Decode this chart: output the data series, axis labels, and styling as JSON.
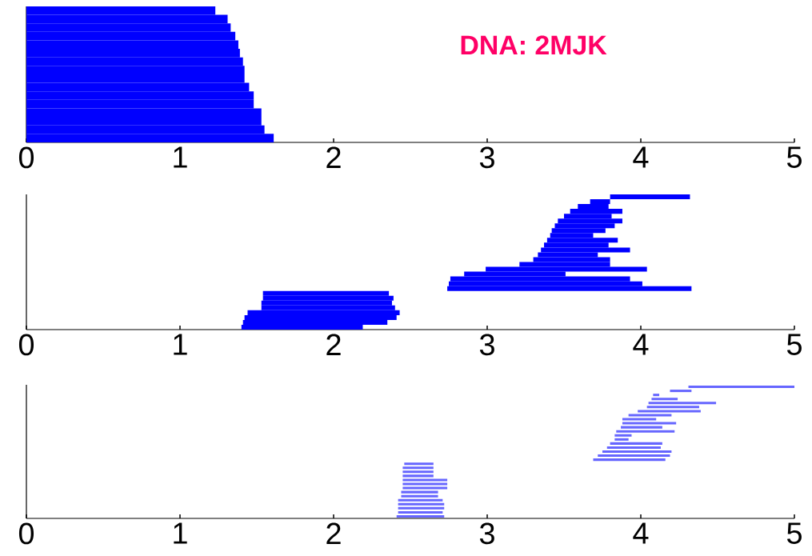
{
  "chart_data": [
    {
      "type": "bar",
      "orientation": "horizontal",
      "title": "DNA: 2MJK",
      "color": "#0000ff",
      "xlim": [
        0,
        5
      ],
      "xticks": [
        0,
        1,
        2,
        3,
        4,
        5
      ],
      "categories": [
        null,
        null,
        null,
        null,
        null,
        null,
        null,
        null,
        null,
        null,
        null,
        null,
        null,
        null,
        null,
        null
      ],
      "base": [
        0,
        0,
        0,
        0,
        0,
        0,
        0,
        0,
        0,
        0,
        0,
        0,
        0,
        0,
        0,
        0
      ],
      "values": [
        1.23,
        1.31,
        1.33,
        1.36,
        1.38,
        1.39,
        1.41,
        1.42,
        1.42,
        1.45,
        1.48,
        1.48,
        1.53,
        1.53,
        1.55,
        1.61
      ]
    },
    {
      "type": "bar",
      "orientation": "horizontal",
      "color": "#0000ff",
      "xlim": [
        0,
        5
      ],
      "xticks": [
        0,
        1,
        2,
        3,
        4,
        5
      ],
      "categories": [
        null,
        null,
        null,
        null,
        null,
        null,
        null,
        null,
        null,
        null,
        null,
        null,
        null,
        null,
        null,
        null,
        null,
        null,
        null,
        null,
        null,
        null,
        null,
        null,
        null,
        null,
        null,
        null
      ],
      "base": [
        3.8,
        3.67,
        3.59,
        3.54,
        3.5,
        3.46,
        3.44,
        3.42,
        3.41,
        3.39,
        3.37,
        3.35,
        3.33,
        3.3,
        3.21,
        2.99,
        2.85,
        2.76,
        2.75,
        2.74,
        1.54,
        1.54,
        1.53,
        1.53,
        1.44,
        1.42,
        1.41,
        1.4
      ],
      "values": [
        0.52,
        0.13,
        0.2,
        0.34,
        0.31,
        0.42,
        0.39,
        0.35,
        0.28,
        0.46,
        0.42,
        0.58,
        0.39,
        0.5,
        0.59,
        1.05,
        0.66,
        1.17,
        1.26,
        1.59,
        0.82,
        0.85,
        0.85,
        0.87,
        0.99,
        0.99,
        0.94,
        0.79
      ]
    },
    {
      "type": "bar",
      "orientation": "horizontal",
      "color": "#6666ff",
      "xlim": [
        0,
        5
      ],
      "xticks": [
        0,
        1,
        2,
        3,
        4,
        5
      ],
      "categories": [
        null,
        null,
        null,
        null,
        null,
        null,
        null,
        null,
        null,
        null,
        null,
        null,
        null,
        null,
        null,
        null,
        null,
        null,
        null,
        null,
        null,
        null,
        null,
        null,
        null,
        null,
        null,
        null,
        null,
        null,
        null,
        null,
        null
      ],
      "base": [
        4.31,
        4.19,
        4.08,
        4.07,
        4.05,
        4.04,
        3.98,
        3.92,
        3.88,
        3.88,
        3.87,
        3.84,
        3.83,
        3.83,
        3.8,
        3.78,
        3.75,
        3.72,
        3.69,
        2.46,
        2.45,
        2.45,
        2.45,
        2.45,
        2.45,
        2.45,
        2.44,
        2.44,
        2.42,
        2.42,
        2.42,
        2.42,
        2.41
      ],
      "values": [
        0.69,
        0.14,
        0.04,
        0.17,
        0.44,
        0.34,
        0.41,
        0.28,
        0.22,
        0.35,
        0.27,
        0.38,
        0.11,
        0.09,
        0.34,
        0.35,
        0.45,
        0.47,
        0.47,
        0.19,
        0.2,
        0.2,
        0.2,
        0.29,
        0.29,
        0.29,
        0.24,
        0.24,
        0.29,
        0.3,
        0.3,
        0.29,
        0.31
      ]
    }
  ]
}
